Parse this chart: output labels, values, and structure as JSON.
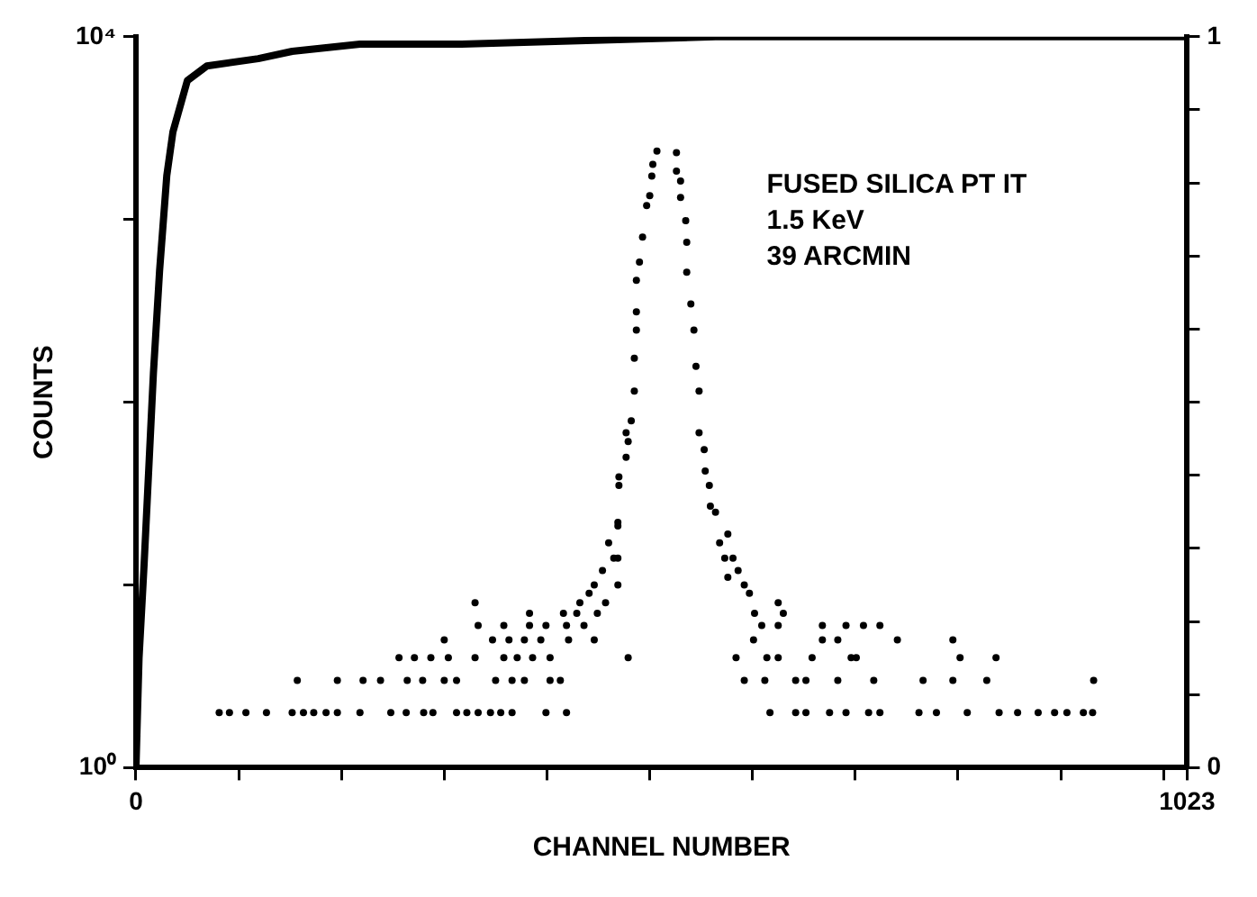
{
  "chart_data": {
    "type": "scatter",
    "xlabel": "CHANNEL NUMBER",
    "ylabel": "COUNTS",
    "annotations": [
      "FUSED SILICA PT IT",
      "1.5 KeV",
      "39 ARCMIN"
    ],
    "xlim": [
      0,
      1023
    ],
    "xticks": [
      0,
      {
        "value": 100,
        "label": null
      },
      {
        "value": 200,
        "label": null
      },
      {
        "value": 300,
        "label": null
      },
      {
        "value": 400,
        "label": null
      },
      {
        "value": 500,
        "label": null
      },
      {
        "value": 600,
        "label": null
      },
      {
        "value": 700,
        "label": null
      },
      {
        "value": 800,
        "label": null
      },
      {
        "value": 900,
        "label": null
      },
      {
        "value": 1000,
        "label": null
      },
      1023
    ],
    "ylim": [
      1,
      10000
    ],
    "yticks": [
      {
        "value": 1,
        "label": "10⁰"
      },
      {
        "value": 10,
        "label": null
      },
      {
        "value": 100,
        "label": null
      },
      {
        "value": 1000,
        "label": null
      },
      {
        "value": 10000,
        "label": "10⁴"
      }
    ],
    "y2lim": [
      0,
      1
    ],
    "y2ticks": [
      0,
      {
        "value": 0.1,
        "label": null
      },
      {
        "value": 0.2,
        "label": null
      },
      {
        "value": 0.3,
        "label": null
      },
      {
        "value": 0.4,
        "label": null
      },
      {
        "value": 0.5,
        "label": null
      },
      {
        "value": 0.6,
        "label": null
      },
      {
        "value": 0.7,
        "label": null
      },
      {
        "value": 0.8,
        "label": null
      },
      {
        "value": 0.9,
        "label": null
      },
      1
    ],
    "log": "y",
    "grid": false,
    "legend": false,
    "series": [
      {
        "marker": "circle",
        "color": "#000000",
        "x": [
          81,
          91,
          107,
          127,
          152,
          163,
          173,
          185,
          196,
          218,
          248,
          263,
          280,
          289,
          312,
          322,
          333,
          345,
          355,
          366,
          399,
          419,
          157,
          196,
          221,
          238,
          264,
          279,
          300,
          312,
          350,
          366,
          378,
          403,
          413,
          256,
          271,
          287,
          304,
          330,
          358,
          371,
          386,
          403,
          300,
          347,
          363,
          378,
          394,
          421,
          446,
          333,
          358,
          383,
          399,
          419,
          436,
          383,
          416,
          429,
          449,
          330,
          432,
          441,
          446,
          454,
          457,
          460,
          465,
          469,
          469,
          470,
          477,
          479,
          479,
          477,
          470,
          469,
          469,
          482,
          485,
          485,
          487,
          487,
          487,
          490,
          493,
          497,
          500,
          502,
          503,
          507,
          526,
          526,
          530,
          530,
          535,
          536,
          536,
          540,
          543,
          545,
          548,
          548,
          553,
          554,
          558,
          559,
          564,
          568,
          576,
          573,
          581,
          576,
          586,
          592,
          597,
          602,
          609,
          625,
          630,
          625,
          601,
          584,
          614,
          625,
          592,
          612,
          617,
          642,
          652,
          642,
          652,
          658,
          668,
          668,
          683,
          691,
          708,
          724,
          675,
          683,
          696,
          701,
          691,
          713,
          724,
          718,
          741,
          762,
          766,
          779,
          795,
          802,
          795,
          809,
          828,
          837,
          840,
          858,
          878,
          894,
          906,
          922,
          931,
          932
        ],
        "values": [
          2,
          2,
          2,
          2,
          2,
          2,
          2,
          2,
          2,
          2,
          2,
          2,
          2,
          2,
          2,
          2,
          2,
          2,
          2,
          2,
          2,
          2,
          3,
          3,
          3,
          3,
          3,
          3,
          3,
          3,
          3,
          3,
          3,
          3,
          3,
          4,
          4,
          4,
          4,
          4,
          4,
          4,
          4,
          4,
          5,
          5,
          5,
          5,
          5,
          5,
          5,
          6,
          6,
          6,
          6,
          6,
          6,
          7,
          7,
          7,
          7,
          8,
          8,
          9,
          10,
          12,
          8,
          17,
          14,
          21,
          10,
          35,
          50,
          4,
          61,
          68,
          39,
          22,
          14,
          79,
          115,
          174,
          248,
          312,
          465,
          585,
          800,
          1190,
          1350,
          1730,
          2000,
          2370,
          2320,
          1840,
          1625,
          1320,
          985,
          750,
          515,
          345,
          248,
          157,
          115,
          68,
          55,
          42,
          35,
          27,
          25,
          17,
          19,
          14,
          14,
          11,
          12,
          10,
          9,
          7,
          6,
          8,
          7,
          6,
          5,
          4,
          4,
          4,
          3,
          3,
          2,
          3,
          3,
          2,
          2,
          4,
          6,
          5,
          5,
          6,
          6,
          6,
          2,
          3,
          4,
          4,
          2,
          2,
          2,
          3,
          5,
          2,
          3,
          2,
          5,
          4,
          3,
          2,
          3,
          4,
          2,
          2,
          2,
          2,
          2,
          2,
          2,
          3
        ]
      },
      {
        "type": "line",
        "axis": "y2",
        "marker": "none",
        "line_style": "solid",
        "color": "#000000",
        "x": [
          0,
          3,
          8,
          17,
          23,
          30,
          36,
          50,
          69,
          119,
          152,
          218,
          317,
          564,
          1023
        ],
        "values": [
          0,
          0.15,
          0.28,
          0.54,
          0.68,
          0.81,
          0.87,
          0.94,
          0.96,
          0.97,
          0.98,
          0.99,
          0.99,
          1,
          1
        ]
      }
    ]
  }
}
